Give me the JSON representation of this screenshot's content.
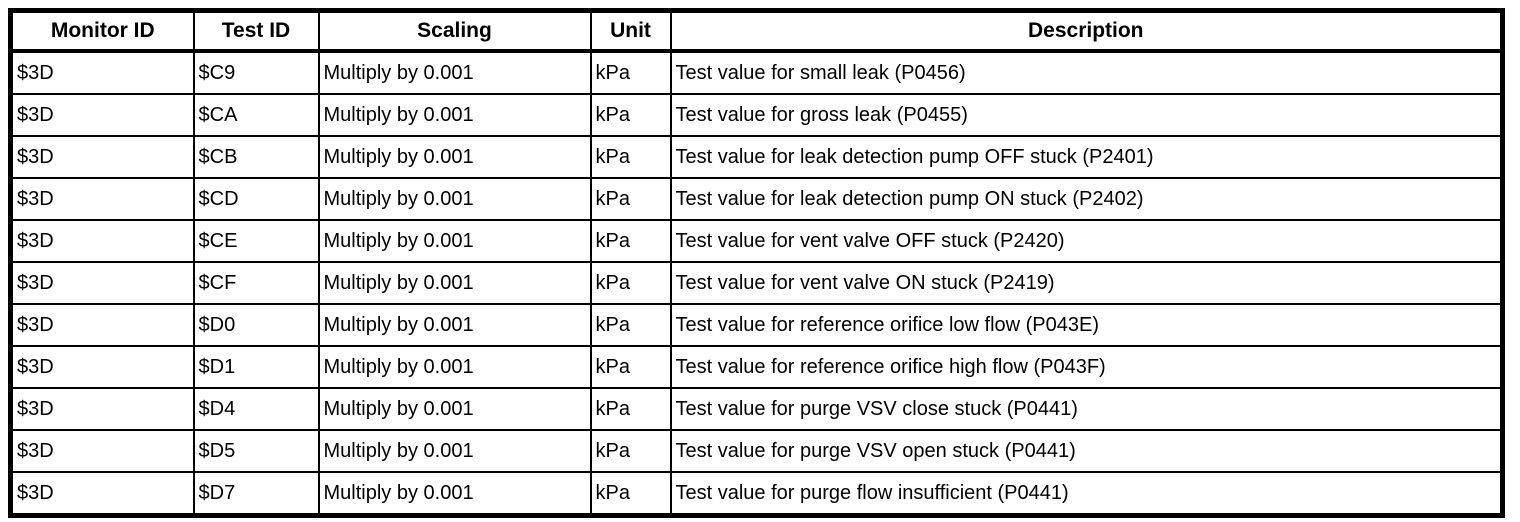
{
  "table": {
    "columns": [
      "Monitor ID",
      "Test ID",
      "Scaling",
      "Unit",
      "Description"
    ],
    "rows": [
      {
        "monitor_id": "$3D",
        "test_id": "$C9",
        "scaling": "Multiply by 0.001",
        "unit": "kPa",
        "description": "Test value for small leak (P0456)"
      },
      {
        "monitor_id": "$3D",
        "test_id": "$CA",
        "scaling": "Multiply by 0.001",
        "unit": "kPa",
        "description": "Test value for gross leak (P0455)"
      },
      {
        "monitor_id": "$3D",
        "test_id": "$CB",
        "scaling": "Multiply by 0.001",
        "unit": "kPa",
        "description": "Test value for leak detection pump OFF stuck (P2401)"
      },
      {
        "monitor_id": "$3D",
        "test_id": "$CD",
        "scaling": "Multiply by 0.001",
        "unit": "kPa",
        "description": "Test value for leak detection pump ON stuck (P2402)"
      },
      {
        "monitor_id": "$3D",
        "test_id": "$CE",
        "scaling": "Multiply by 0.001",
        "unit": "kPa",
        "description": "Test value for vent valve OFF stuck (P2420)"
      },
      {
        "monitor_id": "$3D",
        "test_id": "$CF",
        "scaling": "Multiply by 0.001",
        "unit": "kPa",
        "description": "Test value for vent valve ON stuck (P2419)"
      },
      {
        "monitor_id": "$3D",
        "test_id": "$D0",
        "scaling": "Multiply by 0.001",
        "unit": "kPa",
        "description": "Test value for reference orifice low flow (P043E)"
      },
      {
        "monitor_id": "$3D",
        "test_id": "$D1",
        "scaling": "Multiply by 0.001",
        "unit": "kPa",
        "description": "Test value for reference orifice high flow (P043F)"
      },
      {
        "monitor_id": "$3D",
        "test_id": "$D4",
        "scaling": "Multiply by 0.001",
        "unit": "kPa",
        "description": "Test value for purge VSV close stuck (P0441)"
      },
      {
        "monitor_id": "$3D",
        "test_id": "$D5",
        "scaling": "Multiply by 0.001",
        "unit": "kPa",
        "description": "Test value for purge VSV open stuck (P0441)"
      },
      {
        "monitor_id": "$3D",
        "test_id": "$D7",
        "scaling": "Multiply by 0.001",
        "unit": "kPa",
        "description": "Test value for purge flow insufficient (P0441)"
      }
    ]
  }
}
